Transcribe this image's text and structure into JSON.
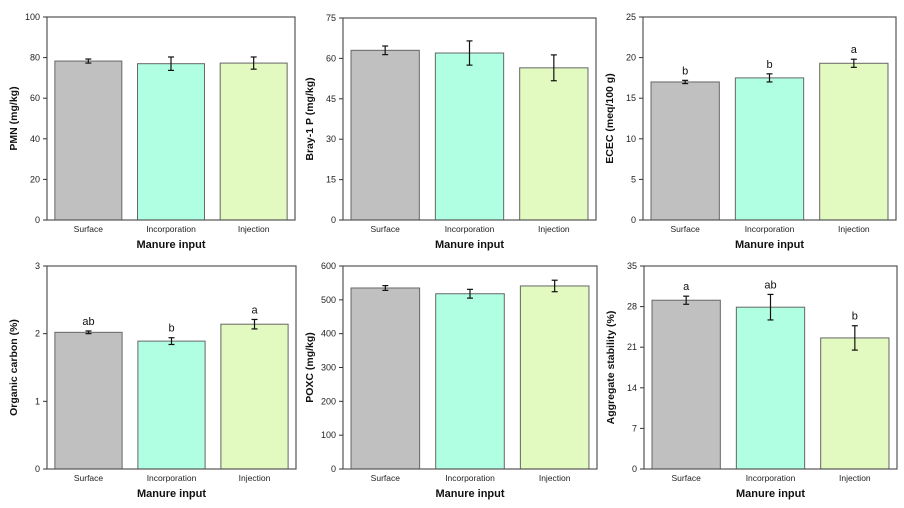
{
  "chart_data": [
    {
      "type": "bar",
      "xlabel": "Manure input",
      "ylabel": "PMN (mg/kg)",
      "ylim": [
        0,
        100
      ],
      "yticks": [
        0,
        20,
        40,
        60,
        80,
        100
      ],
      "categories": [
        "Surface",
        "Incorporation",
        "Injection"
      ],
      "values": [
        78.3,
        77,
        77.3
      ],
      "errors": [
        1,
        3.3,
        3
      ],
      "letters": [
        "",
        "",
        ""
      ]
    },
    {
      "type": "bar",
      "xlabel": "Manure input",
      "ylabel": "Bray-1 P (mg/kg)",
      "ylim": [
        0,
        75
      ],
      "yticks": [
        0,
        15,
        30,
        45,
        60,
        75
      ],
      "categories": [
        "Surface",
        "Incorporation",
        "Injection"
      ],
      "values": [
        63,
        62,
        56.5
      ],
      "errors": [
        1.6,
        4.5,
        4.8
      ],
      "letters": [
        "",
        "",
        ""
      ]
    },
    {
      "type": "bar",
      "xlabel": "Manure input",
      "ylabel": "ECEC (meq/100 g)",
      "ylim": [
        0,
        25
      ],
      "yticks": [
        0,
        5,
        10,
        15,
        20,
        25
      ],
      "categories": [
        "Surface",
        "Incorporation",
        "Injection"
      ],
      "values": [
        17,
        17.5,
        19.3
      ],
      "errors": [
        0.2,
        0.5,
        0.5
      ],
      "letters": [
        "b",
        "b",
        "a"
      ]
    },
    {
      "type": "bar",
      "xlabel": "Manure input",
      "ylabel": "Organic carbon (%)",
      "ylim": [
        0,
        3
      ],
      "yticks": [
        0,
        1,
        2,
        3
      ],
      "categories": [
        "Surface",
        "Incorporation",
        "Injection"
      ],
      "values": [
        2.02,
        1.89,
        2.14
      ],
      "errors": [
        0.02,
        0.05,
        0.07
      ],
      "letters": [
        "ab",
        "b",
        "a"
      ]
    },
    {
      "type": "bar",
      "xlabel": "Manure input",
      "ylabel": "POXC (mg/kg)",
      "ylim": [
        0,
        600
      ],
      "yticks": [
        0,
        100,
        200,
        300,
        400,
        500,
        600
      ],
      "categories": [
        "Surface",
        "Incorporation",
        "Injection"
      ],
      "values": [
        535,
        518,
        541
      ],
      "errors": [
        7,
        13,
        17
      ],
      "letters": [
        "",
        "",
        ""
      ]
    },
    {
      "type": "bar",
      "xlabel": "Manure input",
      "ylabel": "Aggregate stability (%)",
      "ylim": [
        0,
        35
      ],
      "yticks": [
        0,
        7,
        14,
        21,
        28,
        35
      ],
      "categories": [
        "Surface",
        "Incorporation",
        "Injection"
      ],
      "values": [
        29.1,
        27.9,
        22.6
      ],
      "errors": [
        0.7,
        2.2,
        2.1
      ],
      "letters": [
        "a",
        "ab",
        "b"
      ]
    }
  ],
  "colors": {
    "Surface": "#c0c0c0",
    "Incorporation": "#b0ffe2",
    "Injection": "#e2f9c0",
    "frame": "#555555"
  }
}
